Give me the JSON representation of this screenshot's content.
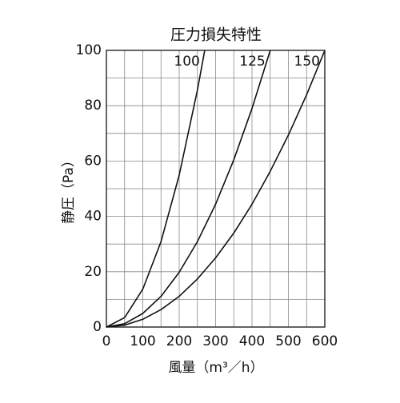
{
  "chart_data": {
    "type": "line",
    "title": "圧力損失特性",
    "xlabel": "風量（m³／h）",
    "ylabel": "静圧（Pa）",
    "xlim": [
      0,
      600
    ],
    "ylim": [
      0,
      100
    ],
    "xticks": [
      0,
      100,
      200,
      300,
      400,
      500,
      600
    ],
    "yticks": [
      0,
      20,
      40,
      60,
      80,
      100
    ],
    "xminorticks": [
      50,
      150,
      250,
      350,
      450,
      550
    ],
    "yminorticks": [
      10,
      30,
      50,
      70,
      90
    ],
    "grid": true,
    "series": [
      {
        "name": "100",
        "color": "#111111",
        "x": [
          0,
          50,
          100,
          150,
          200,
          250,
          270
        ],
        "values": [
          0,
          3.4,
          13.7,
          30.9,
          54.9,
          85.7,
          100
        ]
      },
      {
        "name": "125",
        "color": "#111111",
        "x": [
          0,
          50,
          100,
          150,
          200,
          250,
          300,
          350,
          400,
          450
        ],
        "values": [
          0,
          1.2,
          4.9,
          11.1,
          19.8,
          30.9,
          44.4,
          60.5,
          79,
          100
        ]
      },
      {
        "name": "150",
        "color": "#111111",
        "x": [
          0,
          50,
          100,
          150,
          200,
          250,
          300,
          350,
          400,
          450,
          500,
          550,
          600
        ],
        "values": [
          0,
          0.7,
          2.8,
          6.3,
          11.1,
          17.4,
          25,
          34,
          44.4,
          56.3,
          69.4,
          84,
          100
        ]
      }
    ]
  }
}
